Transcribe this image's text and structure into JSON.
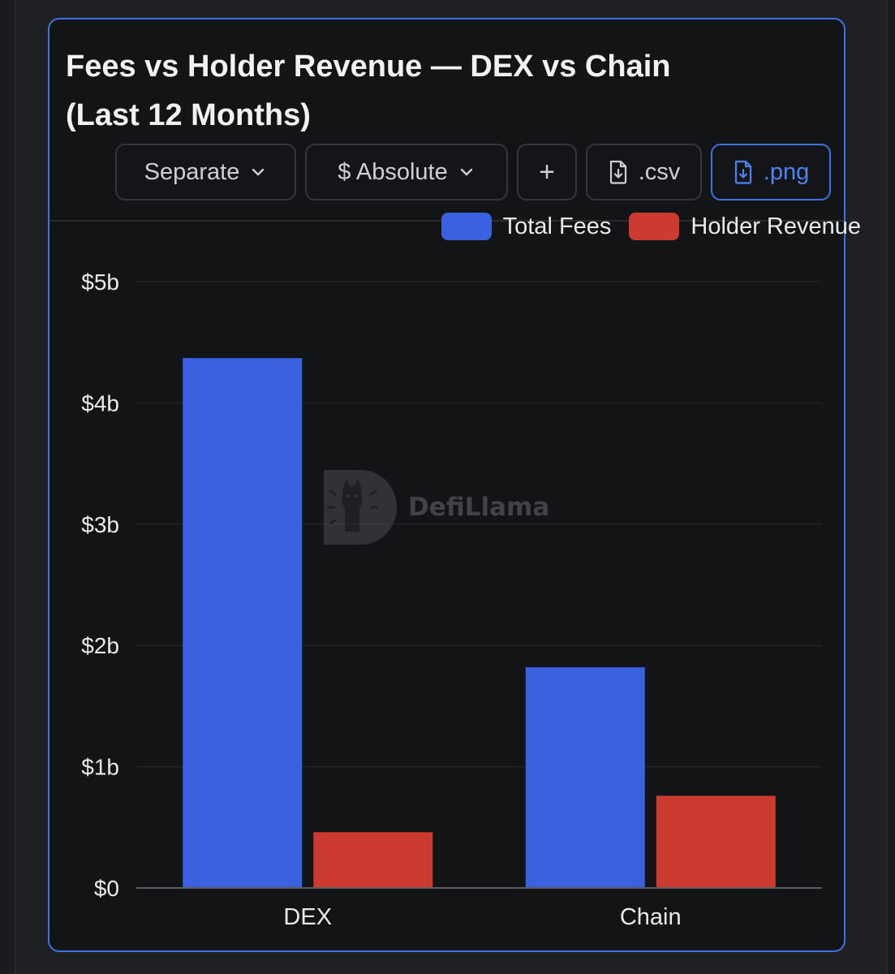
{
  "header": {
    "title_line1": "Fees vs Holder Revenue — DEX vs Chain",
    "title_line2": "(Last 12 Months)"
  },
  "toolbar": {
    "mode_label": "Separate",
    "scale_label": "$ Absolute",
    "add_label": "+",
    "csv_label": ".csv",
    "png_label": ".png"
  },
  "colors": {
    "accent": "#3f72e0",
    "total_fees": "#3a62e0",
    "holder_revenue": "#cc3a30"
  },
  "watermark": {
    "text": "DefiLlama"
  },
  "chart_data": {
    "type": "bar",
    "title": "Fees vs Holder Revenue — DEX vs Chain (Last 12 Months)",
    "categories": [
      "DEX",
      "Chain"
    ],
    "series": [
      {
        "name": "Total Fees",
        "values": [
          4.37,
          1.82
        ]
      },
      {
        "name": "Holder Revenue",
        "values": [
          0.46,
          0.76
        ]
      }
    ],
    "unit": "billions USD",
    "ylim": [
      0,
      5
    ],
    "yticks": [
      0,
      1,
      2,
      3,
      4,
      5
    ],
    "ytick_labels": [
      "$0",
      "$1b",
      "$2b",
      "$3b",
      "$4b",
      "$5b"
    ],
    "xlabel": "",
    "ylabel": "",
    "grid": true,
    "legend": "top-right"
  }
}
